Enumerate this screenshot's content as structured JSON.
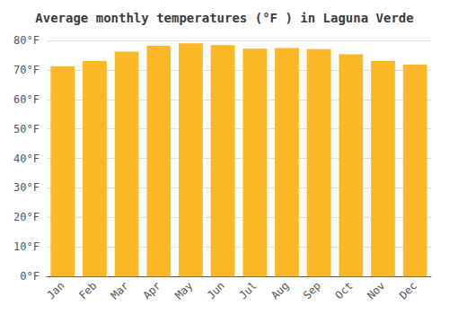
{
  "chart_data": {
    "type": "bar",
    "title": "Average monthly temperatures (°F ) in Laguna Verde",
    "categories": [
      "Jan",
      "Feb",
      "Mar",
      "Apr",
      "May",
      "Jun",
      "Jul",
      "Aug",
      "Sep",
      "Oct",
      "Nov",
      "Dec"
    ],
    "values": [
      71.2,
      73.0,
      76.2,
      78.2,
      79.0,
      78.4,
      77.2,
      77.4,
      77.0,
      75.3,
      73.0,
      71.8
    ],
    "color": "#FDB827",
    "ylim": [
      0,
      80
    ],
    "yticks": [
      {
        "value": 0,
        "label": "0°F"
      },
      {
        "value": 10,
        "label": "10°F"
      },
      {
        "value": 20,
        "label": "20°F"
      },
      {
        "value": 30,
        "label": "30°F"
      },
      {
        "value": 40,
        "label": "40°F"
      },
      {
        "value": 50,
        "label": "50°F"
      },
      {
        "value": 60,
        "label": "60°F"
      },
      {
        "value": 70,
        "label": "70°F"
      },
      {
        "value": 80,
        "label": "80°F"
      }
    ],
    "grid": true
  }
}
